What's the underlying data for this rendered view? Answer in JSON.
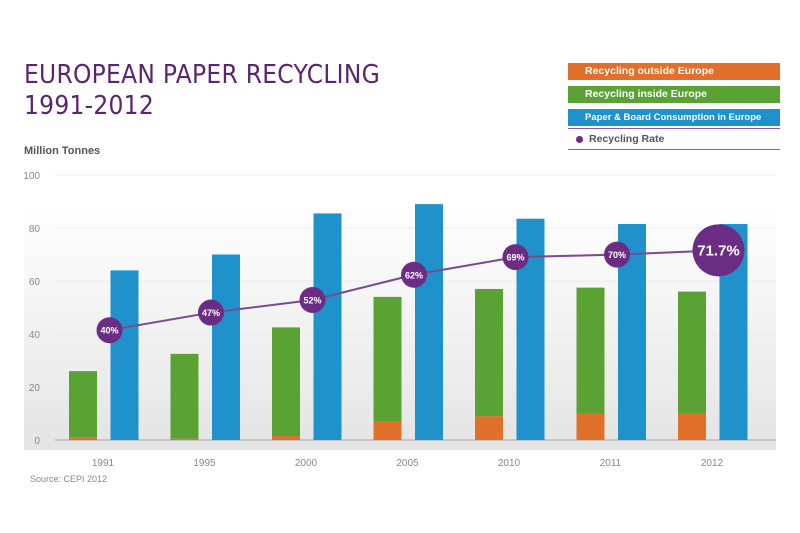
{
  "title_line1": "EUROPEAN PAPER RECYCLING",
  "title_line2": "1991-2012",
  "source": "Source: CEPI 2012",
  "colors": {
    "outside": "#e0702a",
    "inside": "#5aa233",
    "consumption": "#1f92cc",
    "rate": "#6b2d84",
    "title": "#5a2570"
  },
  "chart_data": {
    "type": "bar",
    "ylabel": "Million Tonnes",
    "ylim": [
      0,
      100
    ],
    "yticks": [
      0,
      20,
      40,
      60,
      80,
      100
    ],
    "grid": true,
    "legend_position": "top-right",
    "categories": [
      "1991",
      "1995",
      "2000",
      "2005",
      "2010",
      "2011",
      "2012"
    ],
    "series": [
      {
        "name": "Recycling outside Europe",
        "stack": "recycling",
        "values": [
          1,
          0.5,
          1.5,
          7,
          9,
          10,
          10
        ]
      },
      {
        "name": "Recycling inside Europe",
        "stack": "recycling",
        "values": [
          25,
          32,
          41,
          47,
          48,
          47.5,
          46
        ]
      },
      {
        "name": "Paper & Board Consumption in Europe",
        "stack": "consumption",
        "values": [
          64,
          70,
          85.5,
          89,
          83.5,
          81.5,
          81.5
        ]
      },
      {
        "name": "Recycling Rate",
        "type": "line",
        "unit": "%",
        "values": [
          40,
          47,
          52,
          62,
          69,
          70,
          71.7
        ],
        "labels": [
          "40%",
          "47%",
          "52%",
          "62%",
          "69%",
          "70%",
          "71.7%"
        ]
      }
    ]
  }
}
